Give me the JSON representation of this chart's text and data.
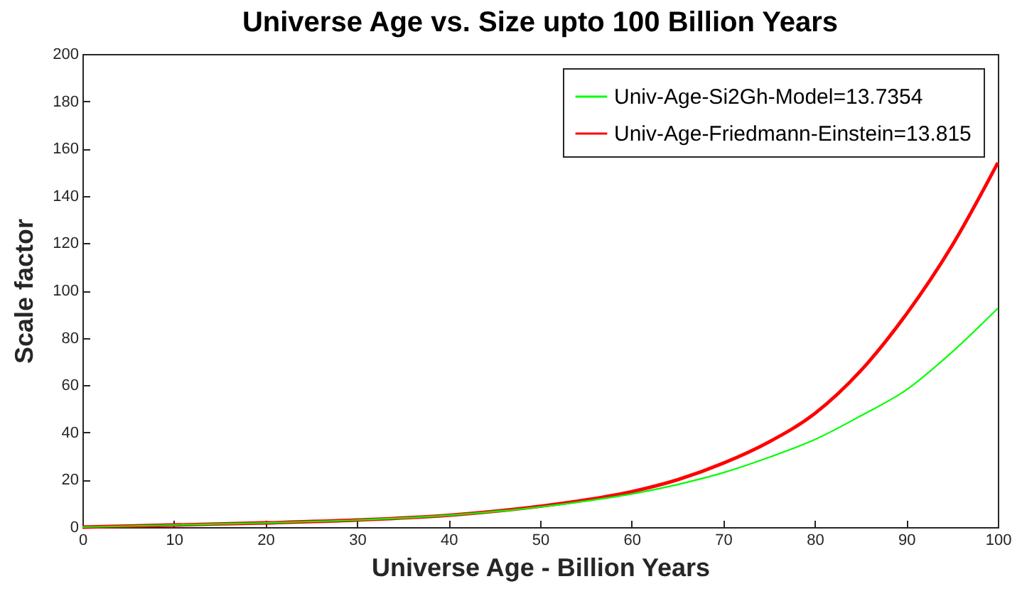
{
  "chart_data": {
    "type": "line",
    "title": "Universe Age vs. Size upto 100 Billion Years",
    "xlabel": "Universe Age - Billion Years",
    "ylabel": "Scale factor",
    "x": [
      0,
      10,
      20,
      30,
      40,
      50,
      55,
      60,
      65,
      70,
      75,
      80,
      85,
      90,
      95,
      100
    ],
    "series": [
      {
        "name": "Univ-Age-Si2Gh-Model=13.7354",
        "color": "#00ff00",
        "values": [
          0,
          0.9,
          1.8,
          3,
          5,
          8.5,
          11,
          14,
          18,
          23,
          29.5,
          37,
          47,
          58,
          74,
          92.5
        ]
      },
      {
        "name": "Univ-Age-Friedmann-Einstein=13.815",
        "color": "#ff0000",
        "values": [
          0,
          0.9,
          1.8,
          3,
          5,
          8.8,
          11.5,
          15,
          20,
          27,
          36,
          48,
          66,
          90,
          119,
          154
        ]
      }
    ],
    "xlim": [
      0,
      100
    ],
    "xticks": [
      0,
      10,
      20,
      30,
      40,
      50,
      60,
      70,
      80,
      90,
      100
    ],
    "ylim": [
      0,
      200
    ],
    "yticks": [
      0,
      20,
      40,
      60,
      80,
      100,
      120,
      140,
      160,
      180,
      200
    ],
    "grid": false,
    "legend": "top right",
    "marker": "none",
    "line_style": "solid"
  }
}
